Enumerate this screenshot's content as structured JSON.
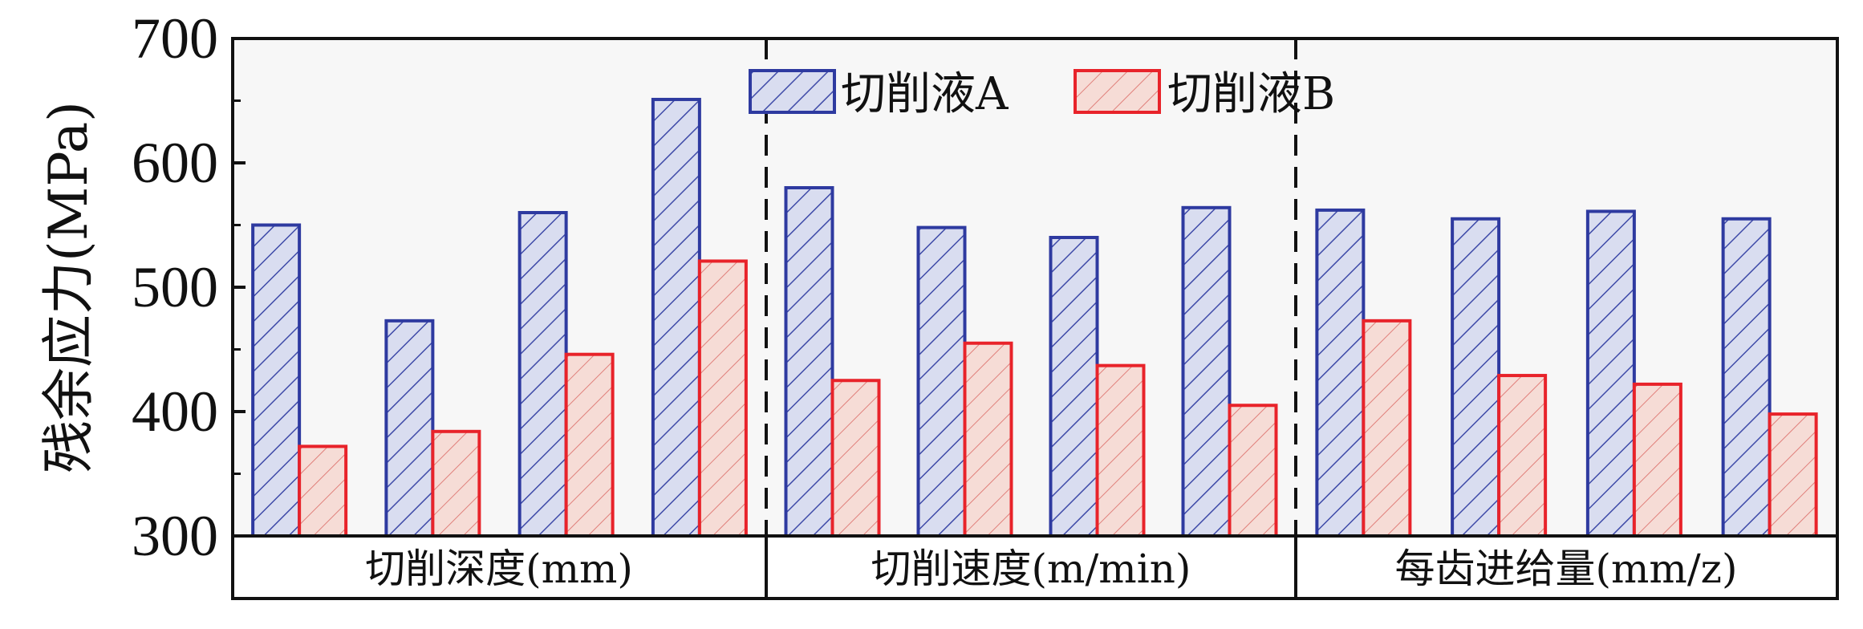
{
  "chart_data": {
    "type": "bar",
    "ylabel": "残余应力(MPa)",
    "ylim": [
      300,
      700
    ],
    "yticks": [
      300,
      400,
      500,
      600,
      700
    ],
    "grid": false,
    "legend_position": "top-center",
    "groups": [
      {
        "label": "切削深度(mm)"
      },
      {
        "label": "切削速度(m/min)"
      },
      {
        "label": "每齿进给量(mm/z)"
      }
    ],
    "series": [
      {
        "name": "切削液A",
        "color": "#2e3aa0",
        "fill": "#c8cde8",
        "pattern": "diagonal-hatch",
        "values": [
          550,
          473,
          560,
          651,
          580,
          548,
          540,
          564,
          562,
          555,
          561,
          555
        ]
      },
      {
        "name": "切削液B",
        "color": "#e8232a",
        "fill": "#f4d4d0",
        "pattern": "diagonal-hatch",
        "values": [
          372,
          384,
          446,
          521,
          425,
          455,
          437,
          405,
          473,
          429,
          422,
          398
        ]
      }
    ]
  }
}
